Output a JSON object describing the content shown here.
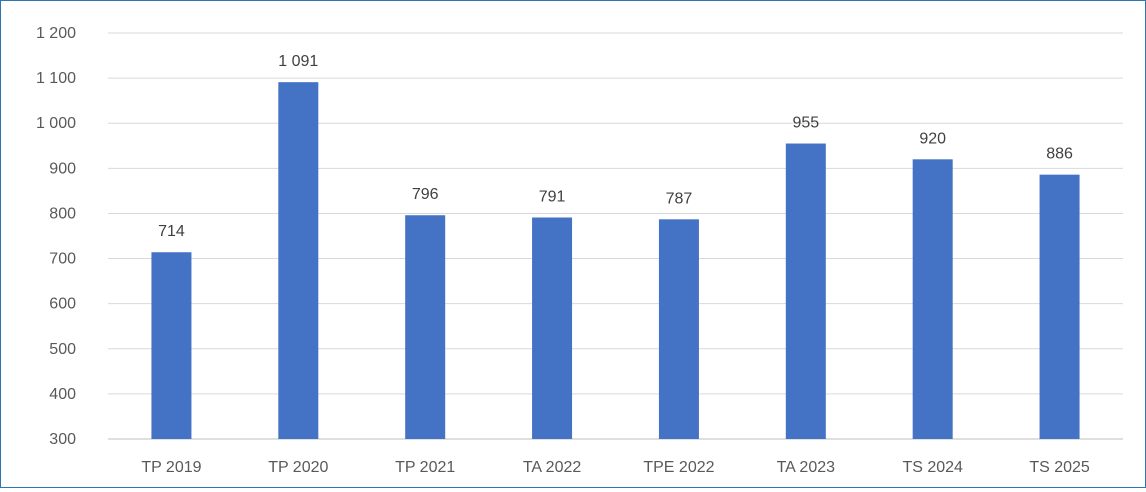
{
  "chart_data": {
    "type": "bar",
    "categories": [
      "TP 2019",
      "TP 2020",
      "TP 2021",
      "TA 2022",
      "TPE 2022",
      "TA 2023",
      "TS 2024",
      "TS 2025"
    ],
    "values": [
      714,
      1091,
      796,
      791,
      787,
      955,
      920,
      886
    ],
    "value_labels": [
      "714",
      "1 091",
      "796",
      "791",
      "787",
      "955",
      "920",
      "886"
    ],
    "y_ticks": [
      300,
      400,
      500,
      600,
      700,
      800,
      900,
      1000,
      1100,
      1200
    ],
    "y_tick_labels": [
      "300",
      "400",
      "500",
      "600",
      "700",
      "800",
      "900",
      "1 000",
      "1 100",
      "1 200"
    ],
    "ylim": [
      300,
      1200
    ],
    "title": "",
    "xlabel": "",
    "ylabel": "",
    "grid": true,
    "legend": "none",
    "colors": {
      "bar": "#4472c4",
      "grid": "#d9d9d9",
      "frame": "#2e75b6",
      "text": "#595959"
    }
  }
}
